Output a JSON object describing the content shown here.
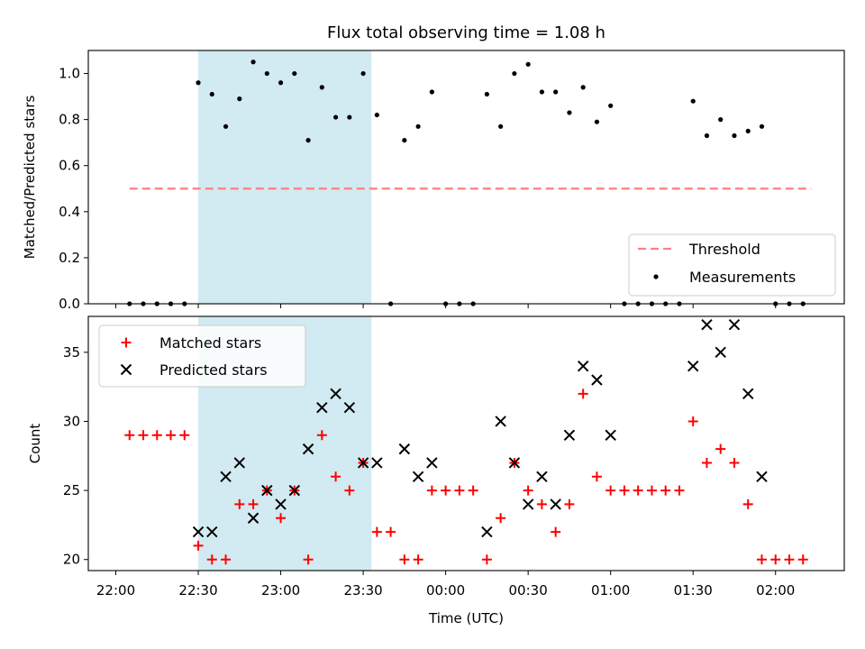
{
  "chart_data": [
    {
      "type": "scatter",
      "title": "Flux total observing time = 1.08 h",
      "ylabel": "Matched/Predicted stars",
      "ylim": [
        0,
        1.1
      ],
      "yticks": [
        0.0,
        0.2,
        0.4,
        0.6,
        0.8,
        1.0
      ],
      "ytick_labels": [
        "0.0",
        "0.2",
        "0.4",
        "0.6",
        "0.8",
        "1.0"
      ],
      "xlim_minutes": [
        -10,
        265
      ],
      "highlight_span_minutes": [
        30,
        93
      ],
      "highlight_color": "#add8e6",
      "legend": {
        "location": "lower-right",
        "entries": [
          "Threshold",
          "Measurements"
        ]
      },
      "threshold": {
        "name": "Threshold",
        "value": 0.5,
        "x_range_minutes": [
          5,
          253
        ],
        "color": "#ff7f7f",
        "style": "dashed"
      },
      "series": [
        {
          "name": "Measurements",
          "color": "#000000",
          "marker": "dot",
          "x_minutes": [
            5,
            10,
            15,
            20,
            25,
            30,
            35,
            40,
            45,
            50,
            55,
            60,
            65,
            70,
            75,
            80,
            85,
            90,
            95,
            100,
            105,
            110,
            115,
            120,
            125,
            130,
            135,
            140,
            145,
            150,
            155,
            160,
            165,
            170,
            175,
            180,
            185,
            190,
            195,
            200,
            205,
            210,
            215,
            220,
            225,
            230,
            235,
            240,
            245,
            250
          ],
          "y": [
            0,
            0,
            0,
            0,
            0,
            0.96,
            0.91,
            0.77,
            0.89,
            1.05,
            1.0,
            0.96,
            1.0,
            0.71,
            0.94,
            0.81,
            0.81,
            1.0,
            0.82,
            0,
            0.71,
            0.77,
            0.92,
            0,
            0,
            0,
            0.91,
            0.77,
            1.0,
            1.04,
            0.92,
            0.92,
            0.83,
            0.94,
            0.79,
            0.86,
            0,
            0,
            0,
            0,
            0,
            0.88,
            0.73,
            0.8,
            0.73,
            0.75,
            0.77,
            0,
            0,
            0
          ]
        }
      ]
    },
    {
      "type": "scatter",
      "xlabel": "Time (UTC)",
      "ylabel": "Count",
      "ylim": [
        19.2,
        37.6
      ],
      "yticks": [
        20,
        25,
        30,
        35
      ],
      "ytick_labels": [
        "20",
        "25",
        "30",
        "35"
      ],
      "xlim_minutes": [
        -10,
        265
      ],
      "xticks_minutes": [
        0,
        30,
        60,
        90,
        120,
        150,
        180,
        210,
        240
      ],
      "xtick_labels": [
        "22:00",
        "22:30",
        "23:00",
        "23:30",
        "00:00",
        "00:30",
        "01:00",
        "01:30",
        "02:00"
      ],
      "highlight_span_minutes": [
        30,
        93
      ],
      "highlight_color": "#add8e6",
      "legend": {
        "location": "upper-left",
        "entries": [
          "Matched stars",
          "Predicted stars"
        ]
      },
      "series": [
        {
          "name": "Matched stars",
          "color": "#ff0000",
          "marker": "plus",
          "x_minutes": [
            5,
            10,
            15,
            20,
            25,
            30,
            35,
            40,
            45,
            50,
            55,
            60,
            65,
            70,
            75,
            80,
            85,
            90,
            95,
            100,
            105,
            110,
            115,
            120,
            125,
            130,
            135,
            140,
            145,
            150,
            155,
            160,
            165,
            170,
            175,
            180,
            185,
            190,
            195,
            200,
            205,
            210,
            215,
            220,
            225,
            230,
            235,
            240,
            245,
            250
          ],
          "y": [
            29,
            29,
            29,
            29,
            29,
            21,
            20,
            20,
            24,
            24,
            25,
            23,
            25,
            20,
            29,
            26,
            25,
            27,
            22,
            22,
            20,
            20,
            25,
            25,
            25,
            25,
            20,
            23,
            27,
            25,
            24,
            22,
            24,
            32,
            26,
            25,
            25,
            25,
            25,
            25,
            25,
            30,
            27,
            28,
            27,
            24,
            20,
            20,
            20,
            20
          ]
        },
        {
          "name": "Predicted stars",
          "color": "#000000",
          "marker": "x",
          "x_minutes": [
            30,
            35,
            40,
            45,
            50,
            55,
            60,
            65,
            70,
            75,
            80,
            85,
            90,
            95,
            105,
            110,
            115,
            135,
            140,
            145,
            150,
            155,
            160,
            165,
            170,
            175,
            180,
            210,
            215,
            220,
            225,
            230,
            235
          ],
          "y": [
            22,
            22,
            26,
            27,
            23,
            25,
            24,
            25,
            28,
            31,
            32,
            31,
            27,
            27,
            28,
            26,
            27,
            22,
            30,
            27,
            24,
            26,
            24,
            29,
            34,
            33,
            29,
            34,
            37,
            35,
            37,
            32,
            26
          ]
        }
      ]
    }
  ]
}
